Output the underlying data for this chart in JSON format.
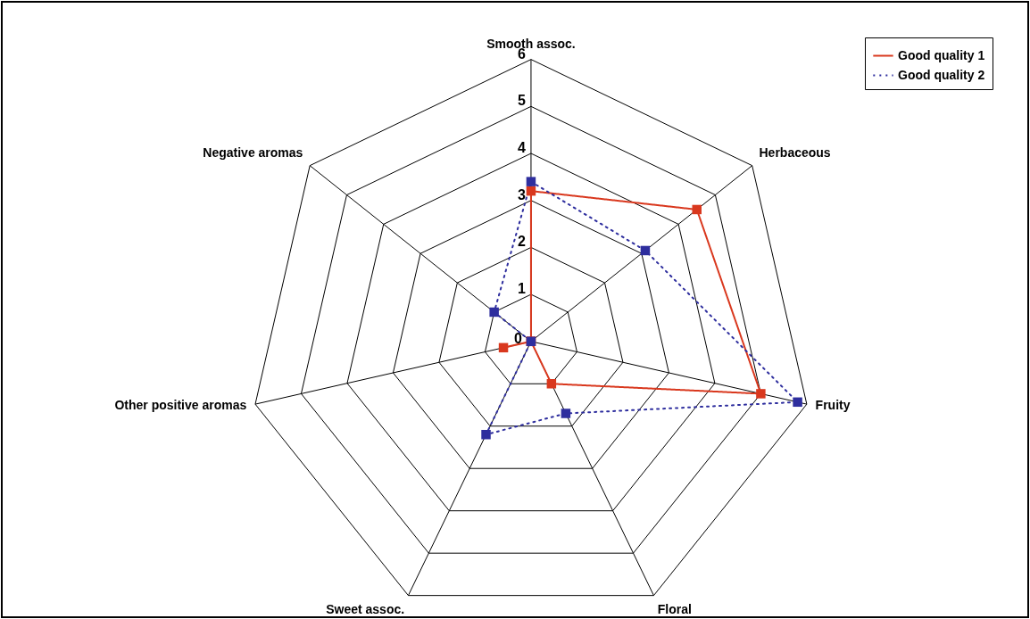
{
  "chart_data": {
    "type": "radar",
    "categories": [
      "Smooth assoc.",
      "Herbaceous",
      "Fruity",
      "Floral",
      "Sweet assoc.",
      "Other positive aromas",
      "Negative aromas"
    ],
    "series": [
      {
        "name": "Good quality 1",
        "color": "#d9381e",
        "line_style": "solid",
        "values": [
          3.2,
          4.5,
          5.0,
          1.0,
          0,
          0.6,
          0
        ]
      },
      {
        "name": "Good quality 2",
        "color": "#2e2e9e",
        "line_style": "dotted",
        "values": [
          3.4,
          3.1,
          5.8,
          1.7,
          2.2,
          0,
          1.0
        ]
      }
    ],
    "ylim": [
      0,
      6
    ],
    "yticks": [
      0,
      1,
      2,
      3,
      4,
      5,
      6
    ],
    "grid": true,
    "legend": "top right",
    "marker": "square"
  }
}
